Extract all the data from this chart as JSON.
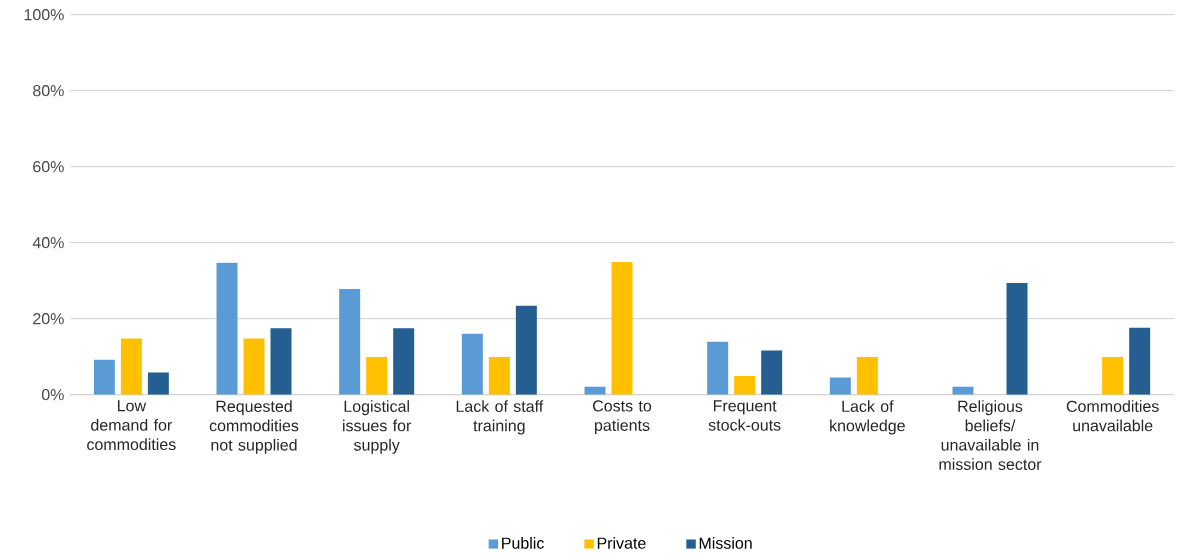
{
  "chart_data": {
    "type": "bar",
    "categories": [
      "Low demand for commodities",
      "Requested commodities not supplied",
      "Logistical issues for supply",
      "Lack of staff training",
      "Costs to patients",
      "Frequent stock-outs",
      "Lack of knowledge",
      "Religious beliefs/ unavailable in mission sector",
      "Commodities unavailable"
    ],
    "series": [
      {
        "name": "Public",
        "color": "#5b9bd5",
        "values": [
          9.2,
          34.7,
          27.8,
          16.0,
          2.1,
          13.9,
          4.5,
          2.1,
          null
        ]
      },
      {
        "name": "Private",
        "color": "#ffc000",
        "values": [
          14.8,
          14.8,
          9.9,
          9.9,
          34.9,
          4.9,
          9.9,
          null,
          9.9
        ]
      },
      {
        "name": "Mission",
        "color": "#255e91",
        "values": [
          5.8,
          17.5,
          17.5,
          23.4,
          null,
          11.6,
          null,
          29.4,
          17.6
        ]
      }
    ],
    "ylim": [
      0,
      100
    ],
    "yticks": [
      {
        "value": 0,
        "label": "0%"
      },
      {
        "value": 20,
        "label": "20%"
      },
      {
        "value": 40,
        "label": "40%"
      },
      {
        "value": 60,
        "label": "60%"
      },
      {
        "value": 80,
        "label": "80%"
      },
      {
        "value": 100,
        "label": "100%"
      }
    ],
    "grid": "y",
    "legend": "bottom"
  }
}
